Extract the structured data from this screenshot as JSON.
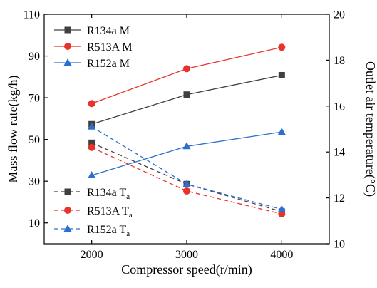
{
  "chart_data": {
    "type": "line",
    "x_label": "Compressor speed(r/min)",
    "y_left_label": "Mass flow rate(kg/h)",
    "y_right_label": "Outlet air temperature(°C)",
    "x_ticks": [
      2000,
      3000,
      4000
    ],
    "x_range": [
      1500,
      4500
    ],
    "y_left_ticks": [
      10,
      30,
      50,
      70,
      90,
      110
    ],
    "y_left_range": [
      0,
      110
    ],
    "y_right_ticks": [
      10,
      12,
      14,
      16,
      18,
      20
    ],
    "y_right_range": [
      10,
      20
    ],
    "grid": false,
    "legend_placement": [
      "top-left",
      "bottom-left"
    ],
    "series": [
      {
        "name": "R134a M",
        "legend_main": "R134a M",
        "legend_sub": "",
        "axis": "left",
        "color": "#404040",
        "marker": "square",
        "dash": "solid",
        "x": [
          2000,
          3000,
          4000
        ],
        "values": [
          57.3,
          71.5,
          80.8
        ]
      },
      {
        "name": "R513A M",
        "legend_main": "R513A M",
        "legend_sub": "",
        "axis": "left",
        "color": "#e8322c",
        "marker": "circle",
        "dash": "solid",
        "x": [
          2000,
          3000,
          4000
        ],
        "values": [
          67.2,
          83.9,
          94.2
        ]
      },
      {
        "name": "R152a M",
        "legend_main": "R152a M",
        "legend_sub": "",
        "axis": "left",
        "color": "#2d6fd0",
        "marker": "triangle",
        "dash": "solid",
        "x": [
          2000,
          3000,
          4000
        ],
        "values": [
          32.8,
          46.7,
          53.6
        ]
      },
      {
        "name": "R134a Ta",
        "legend_main": "R134a T",
        "legend_sub": "a",
        "axis": "right",
        "color": "#404040",
        "marker": "square",
        "dash": "dashed",
        "x": [
          2000,
          3000,
          4000
        ],
        "values": [
          14.4,
          12.6,
          11.4
        ]
      },
      {
        "name": "R513A Ta",
        "legend_main": "R513A T",
        "legend_sub": "a",
        "axis": "right",
        "color": "#e8322c",
        "marker": "circle",
        "dash": "dashed",
        "x": [
          2000,
          3000,
          4000
        ],
        "values": [
          14.2,
          12.3,
          11.3
        ]
      },
      {
        "name": "R152a Ta",
        "legend_main": "R152a T",
        "legend_sub": "a",
        "axis": "right",
        "color": "#2d6fd0",
        "marker": "triangle",
        "dash": "dashed",
        "x": [
          2000,
          3000,
          4000
        ],
        "values": [
          15.1,
          12.6,
          11.5
        ]
      }
    ]
  }
}
